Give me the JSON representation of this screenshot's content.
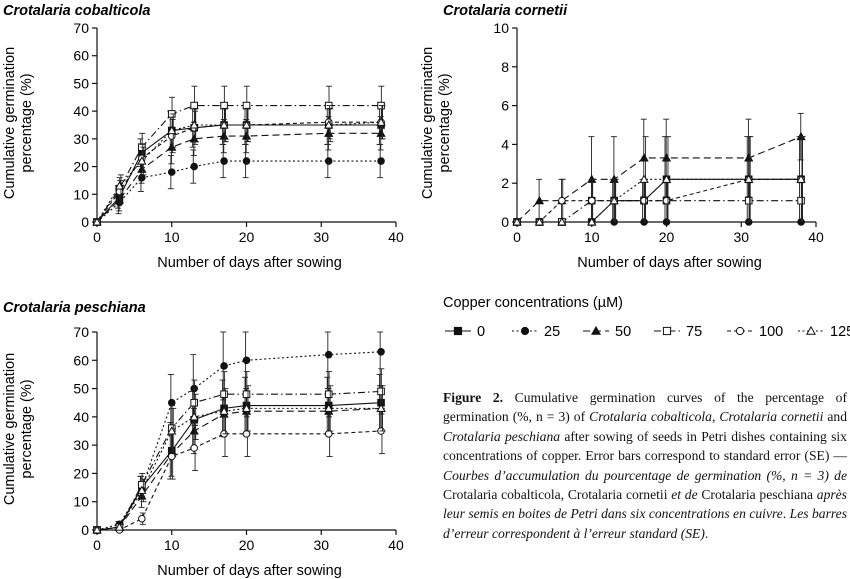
{
  "figure": {
    "caption_label": "Figure 2.",
    "caption_parts": [
      {
        "t": " Cumulative germination curves of the percentage of germination (%, n = 3) of ",
        "i": false
      },
      {
        "t": "Crotalaria cobalticola",
        "i": true
      },
      {
        "t": ", ",
        "i": false
      },
      {
        "t": "Crotalaria cornetii",
        "i": true
      },
      {
        "t": " and ",
        "i": false
      },
      {
        "t": "Crotalaria peschiana",
        "i": true
      },
      {
        "t": " after sowing of seeds in Petri dishes containing six concentrations of copper. Error bars correspond to standard error (SE) — ",
        "i": false
      },
      {
        "t": "Courbes d’accumulation du pourcentage de germination (%, n = 3) de ",
        "i": true
      },
      {
        "t": "Crotalaria cobalticola, Crotalaria cornetii ",
        "i": false
      },
      {
        "t": "et de ",
        "i": true
      },
      {
        "t": "Crotalaria peschiana ",
        "i": false
      },
      {
        "t": "après leur semis en boites de Petri dans six concentrations en cuivre",
        "i": true
      },
      {
        "t": ". ",
        "i": false
      },
      {
        "t": "Les barres d’erreur correspondent à l’erreur standard (SE)",
        "i": true
      },
      {
        "t": ".",
        "i": false
      }
    ]
  },
  "legend": {
    "title": "Copper concentrations (µM)",
    "entries": [
      {
        "label": "0",
        "marker": "square-filled",
        "dash": "solid"
      },
      {
        "label": "25",
        "marker": "circle-filled",
        "dash": "dotted"
      },
      {
        "label": "50",
        "marker": "triangle-filled",
        "dash": "dashed"
      },
      {
        "label": "75",
        "marker": "square-open",
        "dash": "dashdot"
      },
      {
        "label": "100",
        "marker": "circle-open",
        "dash": "shortdash"
      },
      {
        "label": "125",
        "marker": "triangle-open",
        "dash": "dotted"
      }
    ]
  },
  "chart_data": [
    {
      "type": "line",
      "title": "Crotalaria cobalticola",
      "xlabel": "Number of days after sowing",
      "ylabel": "Cumulative germination percentage (%)",
      "xlim": [
        0,
        40
      ],
      "ylim": [
        0,
        70
      ],
      "xticks": [
        0,
        10,
        20,
        30,
        40
      ],
      "yticks": [
        0,
        10,
        20,
        30,
        40,
        50,
        60,
        70
      ],
      "x": [
        0,
        3,
        6,
        10,
        13,
        17,
        20,
        31,
        38
      ],
      "series": [
        {
          "name": "0",
          "values": [
            0,
            9,
            25,
            33,
            34,
            35,
            35,
            35,
            35
          ],
          "error": [
            0,
            4,
            5,
            7,
            7,
            7,
            7,
            7,
            7
          ]
        },
        {
          "name": "25",
          "values": [
            0,
            7,
            16,
            18,
            20,
            22,
            22,
            22,
            22
          ],
          "error": [
            0,
            4,
            5,
            6,
            6,
            6,
            6,
            6,
            6
          ]
        },
        {
          "name": "50",
          "values": [
            0,
            8,
            19,
            27,
            30,
            31,
            31,
            32,
            32
          ],
          "error": [
            0,
            4,
            5,
            6,
            6,
            6,
            6,
            6,
            6
          ]
        },
        {
          "name": "75",
          "values": [
            0,
            12,
            27,
            39,
            42,
            42,
            42,
            42,
            42
          ],
          "error": [
            0,
            4,
            5,
            6,
            7,
            7,
            7,
            7,
            7
          ]
        },
        {
          "name": "100",
          "values": [
            0,
            11,
            23,
            31,
            34,
            35,
            35,
            36,
            36
          ],
          "error": [
            0,
            4,
            5,
            6,
            6,
            6,
            6,
            6,
            6
          ]
        },
        {
          "name": "125",
          "values": [
            0,
            13,
            22,
            33,
            35,
            35,
            35,
            35,
            36
          ],
          "error": [
            0,
            4,
            5,
            6,
            6,
            6,
            6,
            6,
            6
          ]
        }
      ]
    },
    {
      "type": "line",
      "title": "Crotalaria cornetii",
      "xlabel": "Number of days after sowing",
      "ylabel": "Cumulative germination percentage (%)",
      "xlim": [
        0,
        40
      ],
      "ylim": [
        0,
        10
      ],
      "xticks": [
        0,
        10,
        20,
        30,
        40
      ],
      "yticks": [
        0,
        2,
        4,
        6,
        8,
        10
      ],
      "x": [
        0,
        3,
        6,
        10,
        13,
        17,
        20,
        31,
        38
      ],
      "series": [
        {
          "name": "0",
          "values": [
            0,
            0,
            0,
            0,
            1.1,
            1.1,
            2.2,
            2.2,
            2.2
          ],
          "error": [
            0,
            0,
            0,
            0,
            1.1,
            1.1,
            2.2,
            2.2,
            2.2
          ]
        },
        {
          "name": "25",
          "values": [
            0,
            0,
            0,
            0,
            0,
            0,
            0,
            0,
            0
          ],
          "error": [
            0,
            0,
            0,
            0,
            0,
            0,
            0,
            0,
            0
          ]
        },
        {
          "name": "50",
          "values": [
            0,
            1.1,
            1.1,
            2.2,
            2.2,
            3.3,
            3.3,
            3.3,
            4.4
          ],
          "error": [
            0,
            1.1,
            1.1,
            2.2,
            2.2,
            2.0,
            2.0,
            2.0,
            1.2
          ]
        },
        {
          "name": "75",
          "values": [
            0,
            0,
            0,
            1.1,
            1.1,
            1.1,
            1.1,
            1.1,
            1.1
          ],
          "error": [
            0,
            0,
            0,
            1.1,
            1.1,
            1.1,
            1.1,
            1.1,
            1.1
          ]
        },
        {
          "name": "100",
          "values": [
            0,
            0,
            1.1,
            1.1,
            1.1,
            1.1,
            1.1,
            2.2,
            2.2
          ],
          "error": [
            0,
            0,
            1.1,
            1.1,
            1.1,
            1.1,
            1.1,
            2.2,
            2.2
          ]
        },
        {
          "name": "125",
          "values": [
            0,
            0,
            0,
            0,
            1.1,
            2.2,
            2.2,
            2.2,
            2.2
          ],
          "error": [
            0,
            0,
            0,
            0,
            1.1,
            2.2,
            2.2,
            2.2,
            2.2
          ]
        }
      ]
    },
    {
      "type": "line",
      "title": "Crotalaria peschiana",
      "xlabel": "Number of days after sowing",
      "ylabel": "Cumulative germination percentage (%)",
      "xlim": [
        0,
        40
      ],
      "ylim": [
        0,
        70
      ],
      "xticks": [
        0,
        10,
        20,
        30,
        40
      ],
      "yticks": [
        0,
        10,
        20,
        30,
        40,
        50,
        60,
        70
      ],
      "x": [
        0,
        3,
        6,
        10,
        13,
        17,
        20,
        31,
        38
      ],
      "series": [
        {
          "name": "0",
          "values": [
            0,
            1,
            15,
            28,
            39,
            43,
            44,
            44,
            45
          ],
          "error": [
            0,
            1,
            4,
            10,
            10,
            10,
            10,
            10,
            10
          ]
        },
        {
          "name": "25",
          "values": [
            0,
            2,
            15,
            45,
            50,
            58,
            60,
            62,
            63
          ],
          "error": [
            0,
            1,
            4,
            10,
            12,
            12,
            12,
            12,
            12
          ]
        },
        {
          "name": "50",
          "values": [
            0,
            1,
            12,
            27,
            35,
            41,
            42,
            42,
            43
          ],
          "error": [
            0,
            1,
            4,
            8,
            8,
            8,
            8,
            8,
            8
          ]
        },
        {
          "name": "75",
          "values": [
            0,
            1,
            16,
            36,
            45,
            48,
            48,
            48,
            49
          ],
          "error": [
            0,
            1,
            4,
            8,
            8,
            8,
            8,
            8,
            8
          ]
        },
        {
          "name": "100",
          "values": [
            0,
            0,
            4,
            26,
            29,
            34,
            34,
            34,
            35
          ],
          "error": [
            0,
            0,
            2,
            8,
            8,
            8,
            8,
            8,
            8
          ]
        },
        {
          "name": "125",
          "values": [
            0,
            1,
            14,
            35,
            40,
            42,
            43,
            43,
            43
          ],
          "error": [
            0,
            1,
            4,
            8,
            8,
            8,
            8,
            8,
            8
          ]
        }
      ]
    }
  ]
}
